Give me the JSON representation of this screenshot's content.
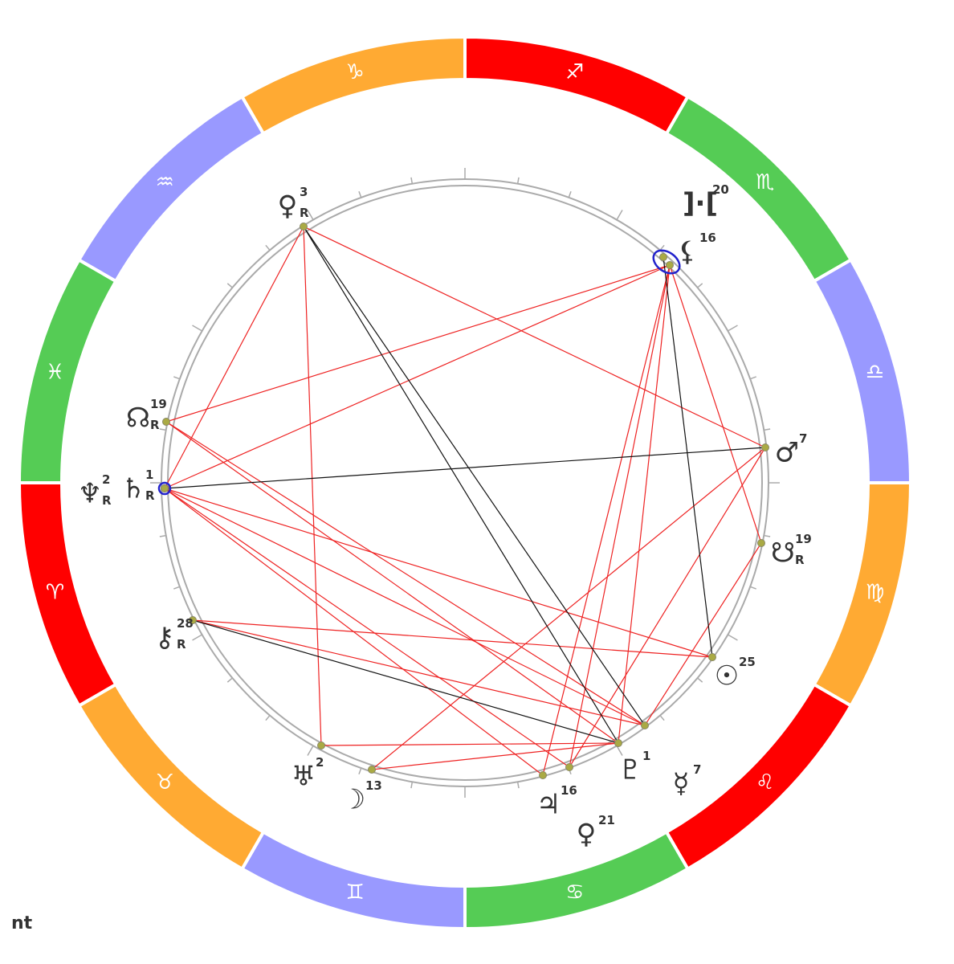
{
  "zodiac": [
    {
      "glyph": "♐"
    },
    {
      "glyph": "♏"
    },
    {
      "glyph": "♎"
    },
    {
      "glyph": "♍"
    },
    {
      "glyph": "♌"
    },
    {
      "glyph": "♋"
    },
    {
      "glyph": "♊"
    },
    {
      "glyph": "♉"
    },
    {
      "glyph": "♈"
    },
    {
      "glyph": "♓"
    },
    {
      "glyph": "♒"
    },
    {
      "glyph": "♑"
    }
  ],
  "planets": [
    {
      "glyph": "♀",
      "degree": "3",
      "retro": "R"
    },
    {
      "glyph": "]·[",
      "degree": "20"
    },
    {
      "glyph": "⚸",
      "degree": "16"
    },
    {
      "glyph": "☊",
      "degree": "19",
      "retro": "R"
    },
    {
      "glyph": "♆",
      "degree": "2",
      "retro": "R"
    },
    {
      "glyph": "♄",
      "degree": "1",
      "retro": "R"
    },
    {
      "glyph": "♂",
      "degree": "7"
    },
    {
      "glyph": "☋",
      "degree": "19",
      "retro": "R"
    },
    {
      "glyph": "⚷",
      "degree": "28",
      "retro": "R"
    },
    {
      "glyph": "☉",
      "degree": "25"
    },
    {
      "glyph": "♅",
      "degree": "2"
    },
    {
      "glyph": "☽",
      "degree": "13"
    },
    {
      "glyph": "♃",
      "degree": "16"
    },
    {
      "glyph": "♀",
      "degree": "21"
    },
    {
      "glyph": "♇",
      "degree": "1"
    },
    {
      "glyph": "☿",
      "degree": "7"
    }
  ],
  "footer": "nt"
}
